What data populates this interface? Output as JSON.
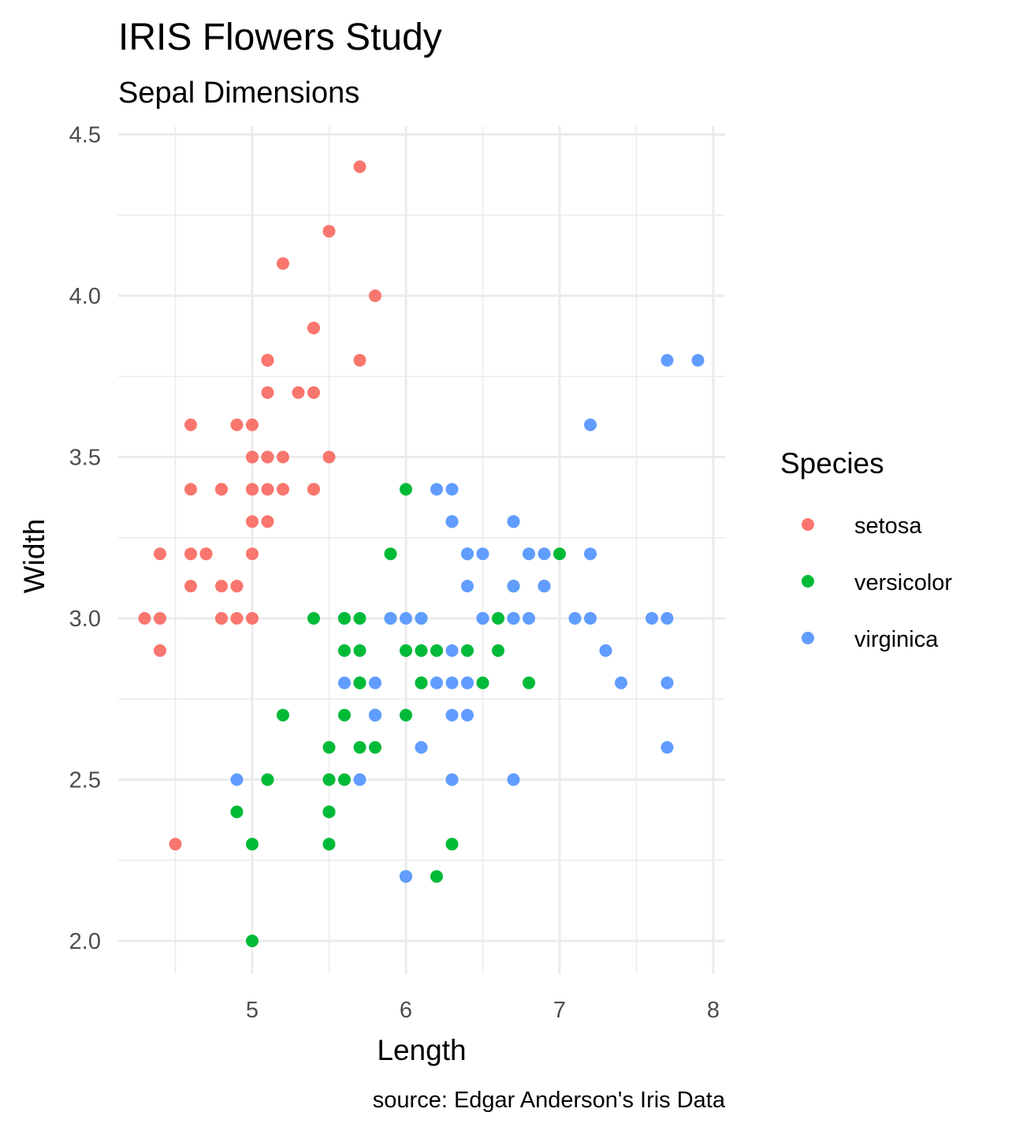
{
  "chart_data": {
    "type": "scatter",
    "title": "IRIS Flowers Study",
    "subtitle": "Sepal Dimensions",
    "xlabel": "Length",
    "ylabel": "Width",
    "caption": "source: Edgar Anderson's Iris Data",
    "xlim": [
      4.3,
      7.9
    ],
    "ylim": [
      2.0,
      4.4
    ],
    "x_ticks": [
      5,
      6,
      7,
      8
    ],
    "y_ticks": [
      2.0,
      2.5,
      3.0,
      3.5,
      4.0,
      4.5
    ],
    "x_tick_labels": [
      "5",
      "6",
      "7",
      "8"
    ],
    "y_tick_labels": [
      "2.0",
      "2.5",
      "3.0",
      "3.5",
      "4.0",
      "4.5"
    ],
    "grid": true,
    "legend": {
      "title": "Species",
      "position": "right"
    },
    "series": [
      {
        "name": "setosa",
        "color": "#F8766D",
        "points": [
          [
            5.1,
            3.5
          ],
          [
            4.9,
            3.0
          ],
          [
            4.7,
            3.2
          ],
          [
            4.6,
            3.1
          ],
          [
            5.0,
            3.6
          ],
          [
            5.4,
            3.9
          ],
          [
            4.6,
            3.4
          ],
          [
            5.0,
            3.4
          ],
          [
            4.4,
            2.9
          ],
          [
            4.9,
            3.1
          ],
          [
            5.4,
            3.7
          ],
          [
            4.8,
            3.4
          ],
          [
            4.8,
            3.0
          ],
          [
            4.3,
            3.0
          ],
          [
            5.8,
            4.0
          ],
          [
            5.7,
            4.4
          ],
          [
            5.4,
            3.9
          ],
          [
            5.1,
            3.5
          ],
          [
            5.7,
            3.8
          ],
          [
            5.1,
            3.8
          ],
          [
            5.4,
            3.4
          ],
          [
            5.1,
            3.7
          ],
          [
            4.6,
            3.6
          ],
          [
            5.1,
            3.3
          ],
          [
            4.8,
            3.4
          ],
          [
            5.0,
            3.0
          ],
          [
            5.0,
            3.4
          ],
          [
            5.2,
            3.5
          ],
          [
            5.2,
            3.4
          ],
          [
            4.7,
            3.2
          ],
          [
            4.8,
            3.1
          ],
          [
            5.4,
            3.4
          ],
          [
            5.2,
            4.1
          ],
          [
            5.5,
            4.2
          ],
          [
            4.9,
            3.1
          ],
          [
            5.0,
            3.2
          ],
          [
            5.5,
            3.5
          ],
          [
            4.9,
            3.6
          ],
          [
            4.4,
            3.0
          ],
          [
            5.1,
            3.4
          ],
          [
            5.0,
            3.5
          ],
          [
            4.5,
            2.3
          ],
          [
            4.4,
            3.2
          ],
          [
            5.0,
            3.5
          ],
          [
            5.1,
            3.8
          ],
          [
            4.8,
            3.0
          ],
          [
            5.1,
            3.8
          ],
          [
            4.6,
            3.2
          ],
          [
            5.3,
            3.7
          ],
          [
            5.0,
            3.3
          ]
        ]
      },
      {
        "name": "versicolor",
        "color": "#00BA38",
        "points": [
          [
            7.0,
            3.2
          ],
          [
            6.4,
            3.2
          ],
          [
            6.9,
            3.1
          ],
          [
            5.5,
            2.3
          ],
          [
            6.5,
            2.8
          ],
          [
            5.7,
            2.8
          ],
          [
            6.3,
            3.3
          ],
          [
            4.9,
            2.4
          ],
          [
            6.6,
            2.9
          ],
          [
            5.2,
            2.7
          ],
          [
            5.0,
            2.0
          ],
          [
            5.9,
            3.0
          ],
          [
            6.0,
            2.2
          ],
          [
            6.1,
            2.9
          ],
          [
            5.6,
            2.9
          ],
          [
            6.7,
            3.1
          ],
          [
            5.6,
            3.0
          ],
          [
            5.8,
            2.7
          ],
          [
            6.2,
            2.2
          ],
          [
            5.6,
            2.5
          ],
          [
            5.9,
            3.2
          ],
          [
            6.1,
            2.8
          ],
          [
            6.3,
            2.5
          ],
          [
            6.1,
            2.8
          ],
          [
            6.4,
            2.9
          ],
          [
            6.6,
            3.0
          ],
          [
            6.8,
            2.8
          ],
          [
            6.7,
            3.0
          ],
          [
            6.0,
            2.9
          ],
          [
            5.7,
            2.6
          ],
          [
            5.5,
            2.4
          ],
          [
            5.5,
            2.4
          ],
          [
            5.8,
            2.7
          ],
          [
            6.0,
            2.7
          ],
          [
            5.4,
            3.0
          ],
          [
            6.0,
            3.4
          ],
          [
            6.7,
            3.1
          ],
          [
            6.3,
            2.3
          ],
          [
            5.6,
            3.0
          ],
          [
            5.5,
            2.5
          ],
          [
            5.5,
            2.6
          ],
          [
            6.1,
            3.0
          ],
          [
            5.8,
            2.6
          ],
          [
            5.0,
            2.3
          ],
          [
            5.6,
            2.7
          ],
          [
            5.7,
            3.0
          ],
          [
            5.7,
            2.9
          ],
          [
            6.2,
            2.9
          ],
          [
            5.1,
            2.5
          ],
          [
            5.7,
            2.8
          ]
        ]
      },
      {
        "name": "virginica",
        "color": "#619CFF",
        "points": [
          [
            6.3,
            3.3
          ],
          [
            5.8,
            2.7
          ],
          [
            7.1,
            3.0
          ],
          [
            6.3,
            2.9
          ],
          [
            6.5,
            3.0
          ],
          [
            7.6,
            3.0
          ],
          [
            4.9,
            2.5
          ],
          [
            7.3,
            2.9
          ],
          [
            6.7,
            2.5
          ],
          [
            7.2,
            3.6
          ],
          [
            6.5,
            3.2
          ],
          [
            6.4,
            2.7
          ],
          [
            6.8,
            3.0
          ],
          [
            5.7,
            2.5
          ],
          [
            5.8,
            2.8
          ],
          [
            6.4,
            3.2
          ],
          [
            6.5,
            3.0
          ],
          [
            7.7,
            3.8
          ],
          [
            7.7,
            2.6
          ],
          [
            6.0,
            2.2
          ],
          [
            6.9,
            3.2
          ],
          [
            5.6,
            2.8
          ],
          [
            7.7,
            2.8
          ],
          [
            6.3,
            2.7
          ],
          [
            6.7,
            3.3
          ],
          [
            7.2,
            3.2
          ],
          [
            6.2,
            2.8
          ],
          [
            6.1,
            3.0
          ],
          [
            6.4,
            2.8
          ],
          [
            7.2,
            3.0
          ],
          [
            7.4,
            2.8
          ],
          [
            7.9,
            3.8
          ],
          [
            6.4,
            2.8
          ],
          [
            6.3,
            2.8
          ],
          [
            6.1,
            2.6
          ],
          [
            7.7,
            3.0
          ],
          [
            6.3,
            3.4
          ],
          [
            6.4,
            3.1
          ],
          [
            6.0,
            3.0
          ],
          [
            6.9,
            3.1
          ],
          [
            6.7,
            3.1
          ],
          [
            6.9,
            3.1
          ],
          [
            5.8,
            2.7
          ],
          [
            6.8,
            3.2
          ],
          [
            6.7,
            3.3
          ],
          [
            6.7,
            3.0
          ],
          [
            6.3,
            2.5
          ],
          [
            6.5,
            3.0
          ],
          [
            6.2,
            3.4
          ],
          [
            5.9,
            3.0
          ]
        ]
      }
    ]
  }
}
